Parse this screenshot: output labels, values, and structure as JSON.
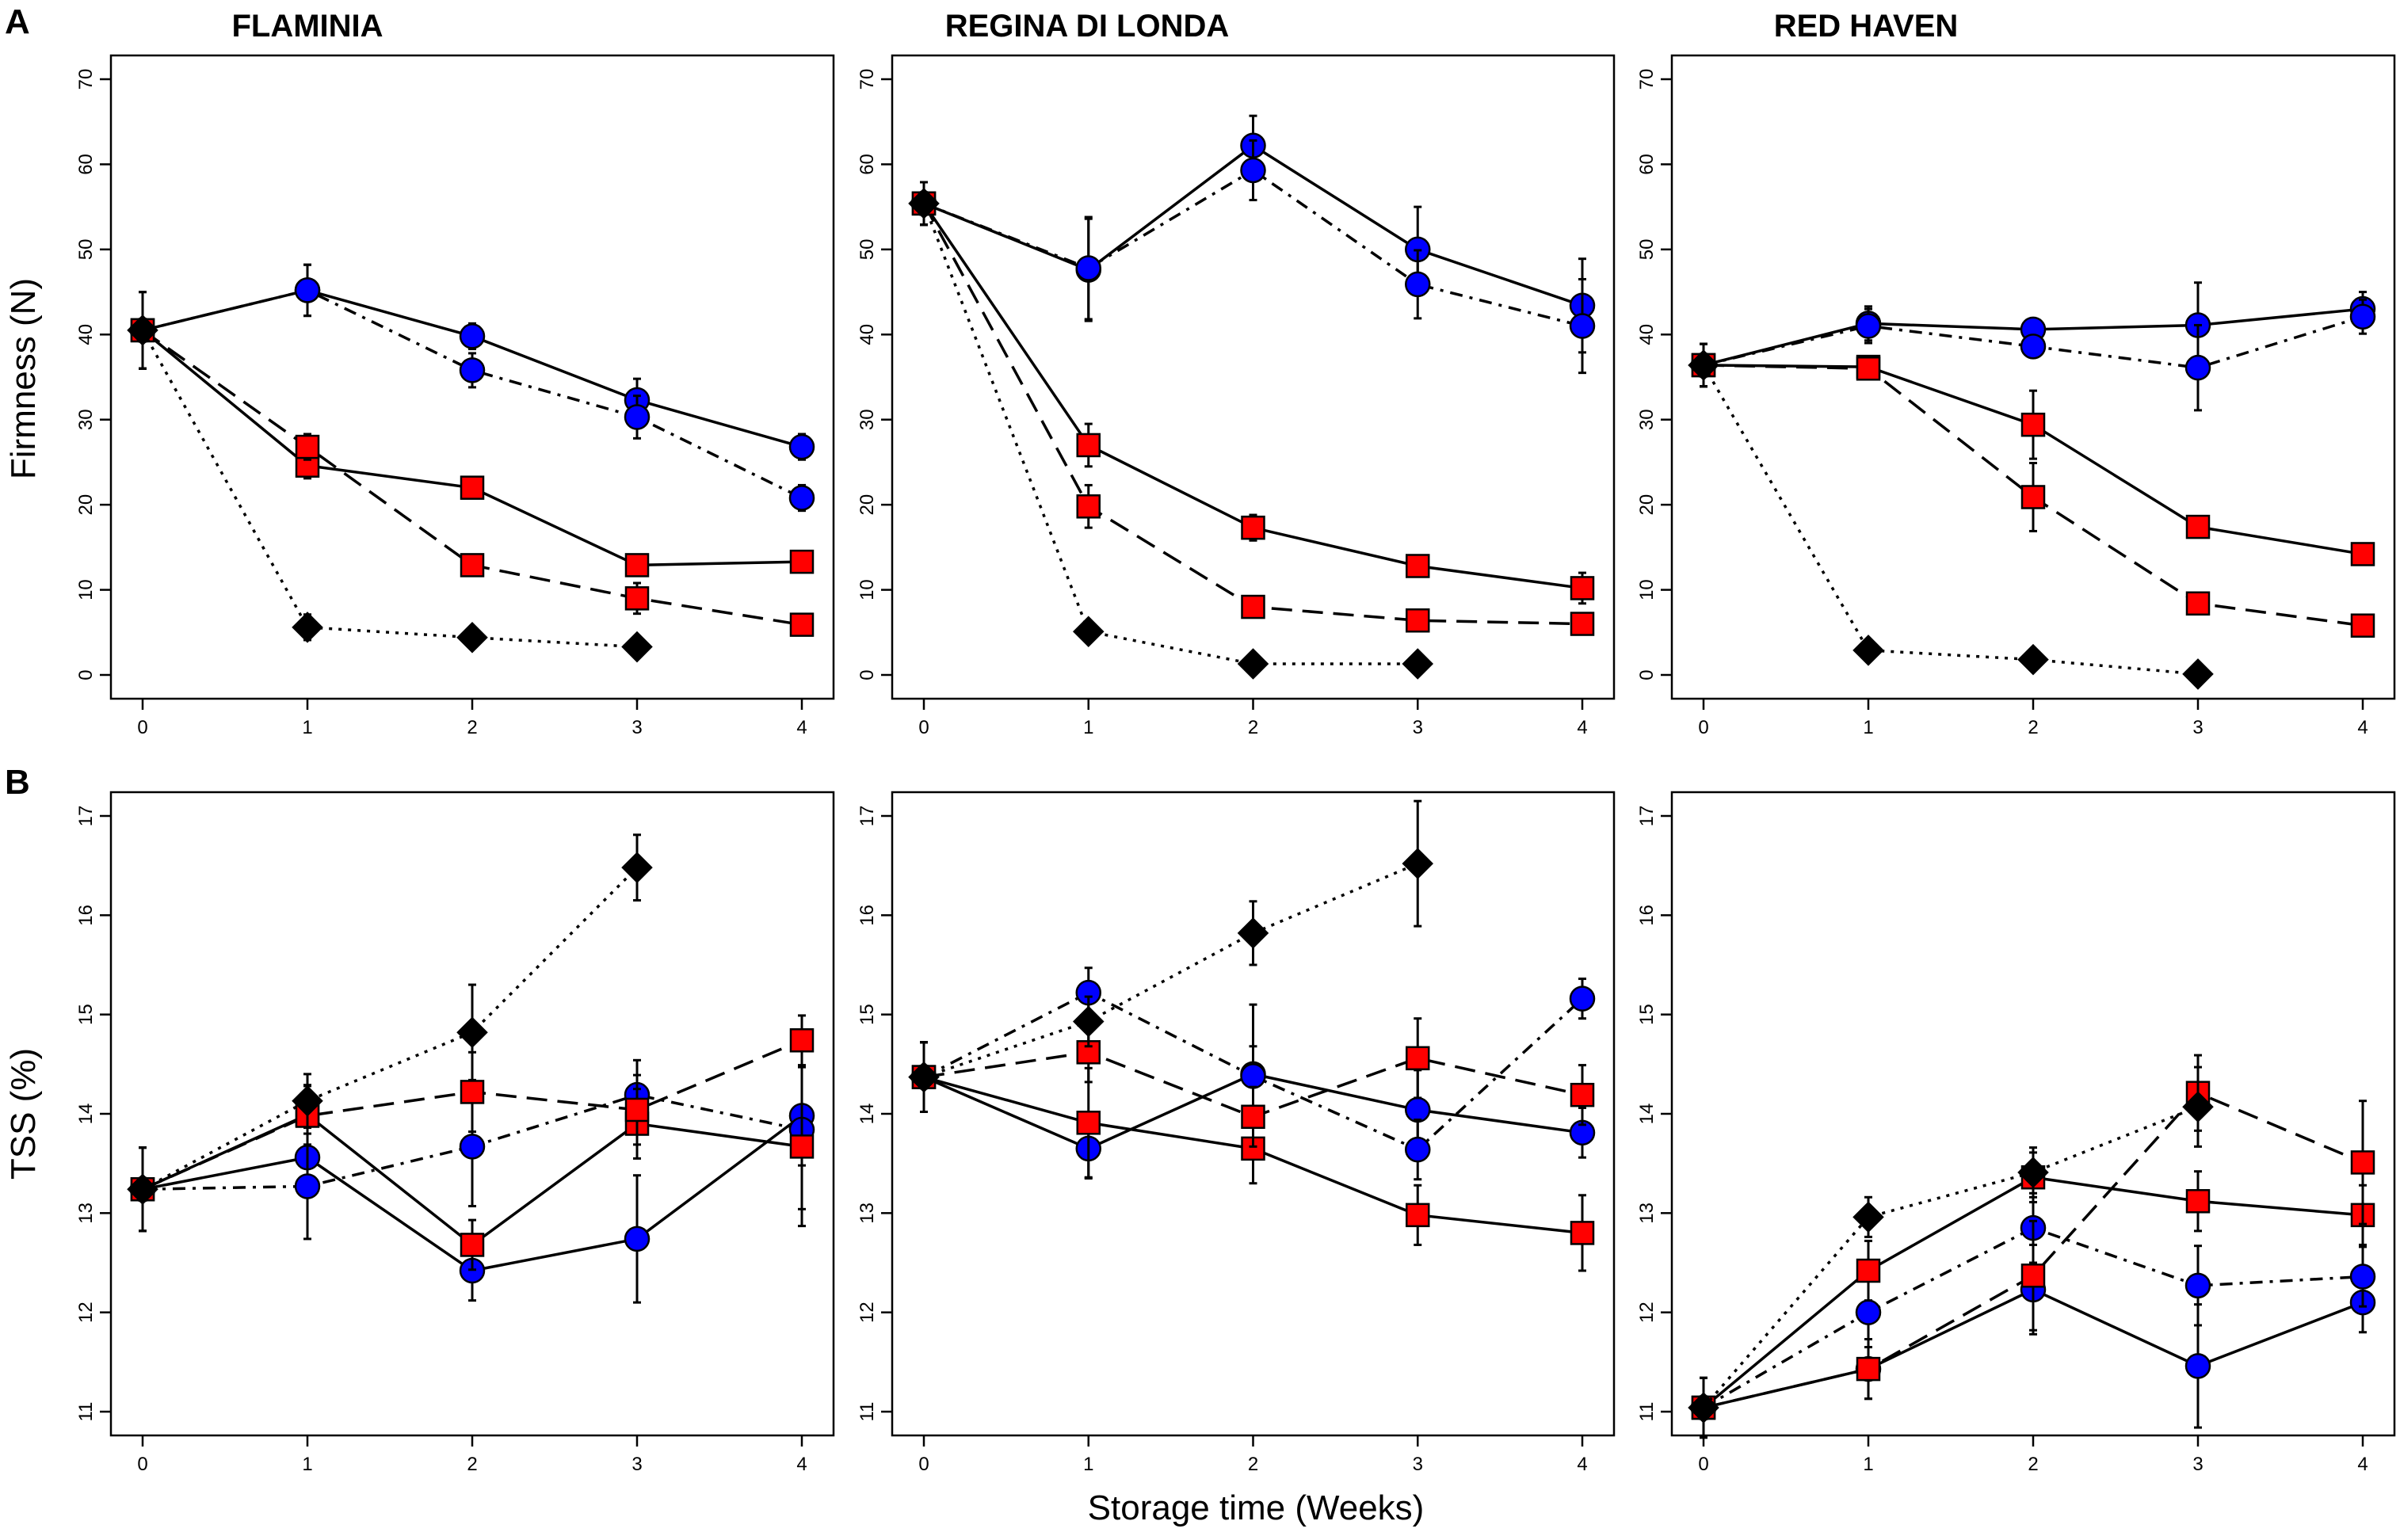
{
  "figure": {
    "panel_labels": [
      "A",
      "B"
    ],
    "xlabel": "Storage time (Weeks)",
    "column_titles": [
      "FLAMINIA",
      "REGINA DI LONDA",
      "RED HAVEN"
    ]
  },
  "chart_data": [
    {
      "type": "line",
      "panel": "A",
      "title": "FLAMINIA",
      "ylabel": "Firmness (N)",
      "xlabel": "",
      "ylim": [
        0,
        70
      ],
      "yticks": [
        0,
        10,
        20,
        30,
        40,
        50,
        60,
        70
      ],
      "xlim": [
        0,
        4
      ],
      "xticks": [
        0,
        1,
        2,
        3,
        4
      ],
      "series": [
        {
          "marker": "circle",
          "color": "#0000ff",
          "dash": "solid",
          "x": [
            0,
            1,
            2,
            3,
            4
          ],
          "y": [
            40.5,
            45.2,
            39.8,
            32.3,
            26.8
          ],
          "err": [
            4.5,
            3,
            1.5,
            2.5,
            1.5
          ]
        },
        {
          "marker": "circle",
          "color": "#0000ff",
          "dash": "dashdot",
          "x": [
            0,
            1,
            2,
            3,
            4
          ],
          "y": [
            40.5,
            45.2,
            35.8,
            30.3,
            20.8
          ],
          "err": [
            4.5,
            3,
            2,
            2.5,
            1.5
          ]
        },
        {
          "marker": "square",
          "color": "#ff0000",
          "dash": "solid",
          "x": [
            0,
            1,
            2,
            3,
            4
          ],
          "y": [
            40.5,
            24.6,
            22.0,
            12.9,
            13.3
          ],
          "err": [
            4.5,
            1.5,
            1,
            1,
            1
          ]
        },
        {
          "marker": "square",
          "color": "#ff0000",
          "dash": "dashed",
          "x": [
            0,
            1,
            2,
            3,
            4
          ],
          "y": [
            40.5,
            26.8,
            12.9,
            9.0,
            5.9
          ],
          "err": [
            4.5,
            1.5,
            1,
            1.8,
            1
          ]
        },
        {
          "marker": "diamond",
          "color": "#000000",
          "dash": "dotted",
          "x": [
            0,
            1,
            2,
            3
          ],
          "y": [
            40.5,
            5.6,
            4.4,
            3.3
          ],
          "err": [
            4.5,
            1.5,
            1,
            1
          ]
        }
      ]
    },
    {
      "type": "line",
      "panel": "A",
      "title": "REGINA DI LONDA",
      "ylabel": "",
      "xlabel": "",
      "ylim": [
        0,
        70
      ],
      "yticks": [
        0,
        10,
        20,
        30,
        40,
        50,
        60,
        70
      ],
      "xlim": [
        0,
        4
      ],
      "xticks": [
        0,
        1,
        2,
        3,
        4
      ],
      "series": [
        {
          "marker": "circle",
          "color": "#0000ff",
          "dash": "solid",
          "x": [
            0,
            1,
            2,
            3,
            4
          ],
          "y": [
            55.4,
            47.6,
            62.2,
            50.0,
            43.4
          ],
          "err": [
            2.5,
            6,
            3.5,
            5,
            5.5
          ]
        },
        {
          "marker": "circle",
          "color": "#0000ff",
          "dash": "dashdot",
          "x": [
            0,
            1,
            2,
            3,
            4
          ],
          "y": [
            55.4,
            47.8,
            59.3,
            45.9,
            41.0
          ],
          "err": [
            2.5,
            6,
            3.5,
            4,
            5.5
          ]
        },
        {
          "marker": "square",
          "color": "#ff0000",
          "dash": "solid",
          "x": [
            0,
            1,
            2,
            3,
            4
          ],
          "y": [
            55.4,
            27.0,
            17.3,
            12.8,
            10.2
          ],
          "err": [
            2.5,
            2.5,
            1.5,
            1.2,
            1.8
          ]
        },
        {
          "marker": "square",
          "color": "#ff0000",
          "dash": "dashed",
          "x": [
            0,
            1,
            2,
            3,
            4
          ],
          "y": [
            55.4,
            19.8,
            8.0,
            6.4,
            6.0
          ],
          "err": [
            2.5,
            2.5,
            1,
            1,
            1
          ]
        },
        {
          "marker": "diamond",
          "color": "#000000",
          "dash": "dotted",
          "x": [
            0,
            1,
            2,
            3
          ],
          "y": [
            55.4,
            5.1,
            1.3,
            1.3
          ],
          "err": [
            2.5,
            1,
            1,
            1
          ]
        }
      ]
    },
    {
      "type": "line",
      "panel": "A",
      "title": "RED HAVEN",
      "ylabel": "",
      "xlabel": "",
      "ylim": [
        0,
        70
      ],
      "yticks": [
        0,
        10,
        20,
        30,
        40,
        50,
        60,
        70
      ],
      "xlim": [
        0,
        4
      ],
      "xticks": [
        0,
        1,
        2,
        3,
        4
      ],
      "series": [
        {
          "marker": "circle",
          "color": "#0000ff",
          "dash": "solid",
          "x": [
            0,
            1,
            2,
            3,
            4
          ],
          "y": [
            36.4,
            41.3,
            40.6,
            41.1,
            43.0
          ],
          "err": [
            2.5,
            2,
            1,
            5,
            2
          ]
        },
        {
          "marker": "circle",
          "color": "#0000ff",
          "dash": "dashdot",
          "x": [
            0,
            1,
            2,
            3,
            4
          ],
          "y": [
            36.4,
            41.0,
            38.6,
            36.1,
            42.1
          ],
          "err": [
            2.5,
            2,
            1,
            5,
            2
          ]
        },
        {
          "marker": "square",
          "color": "#ff0000",
          "dash": "solid",
          "x": [
            0,
            1,
            2,
            3,
            4
          ],
          "y": [
            36.4,
            36.2,
            29.4,
            17.4,
            14.2
          ],
          "err": [
            2.5,
            1,
            4,
            1,
            1
          ]
        },
        {
          "marker": "square",
          "color": "#ff0000",
          "dash": "dashed",
          "x": [
            0,
            1,
            2,
            3,
            4
          ],
          "y": [
            36.4,
            36.0,
            20.9,
            8.4,
            5.8
          ],
          "err": [
            2.5,
            1,
            4,
            1,
            1
          ]
        },
        {
          "marker": "diamond",
          "color": "#000000",
          "dash": "dotted",
          "x": [
            0,
            1,
            2,
            3
          ],
          "y": [
            36.4,
            2.9,
            1.8,
            0.1
          ],
          "err": [
            2.5,
            0.5,
            0.5,
            0.5
          ]
        }
      ]
    },
    {
      "type": "line",
      "panel": "B",
      "title": "",
      "ylabel": "TSS (%)",
      "xlabel": "",
      "ylim": [
        11,
        17
      ],
      "yticks": [
        11,
        12,
        13,
        14,
        15,
        16,
        17
      ],
      "xlim": [
        0,
        4
      ],
      "xticks": [
        0,
        1,
        2,
        3,
        4
      ],
      "series": [
        {
          "marker": "circle",
          "color": "#0000ff",
          "dash": "solid",
          "x": [
            0,
            1,
            2,
            3,
            4
          ],
          "y": [
            13.24,
            13.56,
            12.42,
            12.74,
            13.98
          ],
          "err": [
            0.42,
            0.3,
            0.3,
            0.64,
            0.5
          ]
        },
        {
          "marker": "circle",
          "color": "#0000ff",
          "dash": "dashdot",
          "x": [
            0,
            1,
            2,
            3,
            4
          ],
          "y": [
            13.24,
            13.27,
            13.67,
            14.19,
            13.84
          ],
          "err": [
            0.42,
            0.53,
            0.6,
            0.35,
            0.8
          ]
        },
        {
          "marker": "square",
          "color": "#ff0000",
          "dash": "solid",
          "x": [
            0,
            1,
            2,
            3,
            4
          ],
          "y": [
            13.24,
            13.99,
            12.68,
            13.9,
            13.67
          ],
          "err": [
            0.42,
            0.3,
            0.25,
            0.35,
            0.8
          ]
        },
        {
          "marker": "square",
          "color": "#ff0000",
          "dash": "dashed",
          "x": [
            0,
            1,
            2,
            3,
            4
          ],
          "y": [
            13.24,
            13.98,
            14.22,
            14.04,
            14.74
          ],
          "err": [
            0.42,
            0.3,
            0.4,
            0.35,
            0.25
          ]
        },
        {
          "marker": "diamond",
          "color": "#000000",
          "dash": "dotted",
          "x": [
            0,
            1,
            2,
            3
          ],
          "y": [
            13.24,
            14.13,
            14.82,
            16.48
          ],
          "err": [
            0.42,
            0.27,
            0.48,
            0.33
          ]
        }
      ]
    },
    {
      "type": "line",
      "panel": "B",
      "title": "",
      "ylabel": "",
      "xlabel": "Storage time (Weeks)",
      "ylim": [
        11,
        17
      ],
      "yticks": [
        11,
        12,
        13,
        14,
        15,
        16,
        17
      ],
      "xlim": [
        0,
        4
      ],
      "xticks": [
        0,
        1,
        2,
        3,
        4
      ],
      "series": [
        {
          "marker": "circle",
          "color": "#0000ff",
          "dash": "solid",
          "x": [
            0,
            1,
            2,
            3,
            4
          ],
          "y": [
            14.37,
            13.65,
            14.4,
            14.04,
            13.81
          ],
          "err": [
            0.35,
            0.3,
            0.7,
            0.4,
            0.25
          ]
        },
        {
          "marker": "circle",
          "color": "#0000ff",
          "dash": "dashdot",
          "x": [
            0,
            1,
            2,
            3,
            4
          ],
          "y": [
            14.37,
            15.22,
            14.38,
            13.64,
            15.16
          ],
          "err": [
            0.35,
            0.25,
            0.3,
            0.3,
            0.2
          ]
        },
        {
          "marker": "square",
          "color": "#ff0000",
          "dash": "solid",
          "x": [
            0,
            1,
            2,
            3,
            4
          ],
          "y": [
            14.37,
            13.91,
            13.65,
            12.98,
            12.8
          ],
          "err": [
            0.35,
            0.55,
            0.35,
            0.3,
            0.38
          ]
        },
        {
          "marker": "square",
          "color": "#ff0000",
          "dash": "dashed",
          "x": [
            0,
            1,
            2,
            3,
            4
          ],
          "y": [
            14.37,
            14.62,
            13.97,
            14.56,
            14.19
          ],
          "err": [
            0.35,
            0.3,
            0.3,
            0.4,
            0.3
          ]
        },
        {
          "marker": "diamond",
          "color": "#000000",
          "dash": "dotted",
          "x": [
            0,
            1,
            2,
            3
          ],
          "y": [
            14.37,
            14.93,
            15.82,
            16.52
          ],
          "err": [
            0.35,
            0.25,
            0.32,
            0.63
          ]
        }
      ]
    },
    {
      "type": "line",
      "panel": "B",
      "title": "",
      "ylabel": "",
      "xlabel": "",
      "ylim": [
        11,
        17
      ],
      "yticks": [
        11,
        12,
        13,
        14,
        15,
        16,
        17
      ],
      "xlim": [
        0,
        4
      ],
      "xticks": [
        0,
        1,
        2,
        3,
        4
      ],
      "series": [
        {
          "marker": "circle",
          "color": "#0000ff",
          "dash": "solid",
          "x": [
            0,
            1,
            2,
            3,
            4
          ],
          "y": [
            11.04,
            11.43,
            12.23,
            11.46,
            12.1
          ],
          "err": [
            0.3,
            0.3,
            0.45,
            0.62,
            0.3
          ]
        },
        {
          "marker": "circle",
          "color": "#0000ff",
          "dash": "dashdot",
          "x": [
            0,
            1,
            2,
            3,
            4
          ],
          "y": [
            11.04,
            12.0,
            12.85,
            12.27,
            12.36
          ],
          "err": [
            0.3,
            0.35,
            0.35,
            0.4,
            0.3
          ]
        },
        {
          "marker": "square",
          "color": "#ff0000",
          "dash": "solid",
          "x": [
            0,
            1,
            2,
            3,
            4
          ],
          "y": [
            11.04,
            12.42,
            13.36,
            13.12,
            12.98
          ],
          "err": [
            0.3,
            0.3,
            0.25,
            0.3,
            0.3
          ]
        },
        {
          "marker": "square",
          "color": "#ff0000",
          "dash": "dashed",
          "x": [
            0,
            1,
            2,
            3,
            4
          ],
          "y": [
            11.04,
            11.43,
            12.37,
            14.21,
            13.51
          ],
          "err": [
            0.3,
            0.3,
            0.55,
            0.38,
            0.62
          ]
        },
        {
          "marker": "diamond",
          "color": "#000000",
          "dash": "dotted",
          "x": [
            0,
            1,
            2,
            3
          ],
          "y": [
            11.04,
            12.96,
            13.41,
            14.07
          ],
          "err": [
            0.3,
            0.2,
            0.25,
            0.4
          ]
        }
      ]
    }
  ]
}
